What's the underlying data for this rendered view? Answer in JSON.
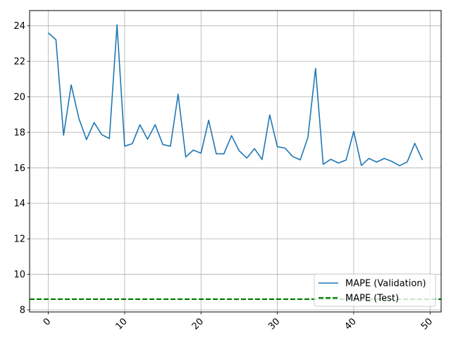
{
  "chart_data": {
    "type": "line",
    "title": "",
    "xlabel": "",
    "ylabel": "",
    "xlim": [
      -2.45,
      51.45
    ],
    "ylim": [
      7.88,
      24.86
    ],
    "x_ticks": [
      0,
      10,
      20,
      30,
      40,
      50
    ],
    "y_ticks": [
      8,
      10,
      12,
      14,
      16,
      18,
      20,
      22,
      24
    ],
    "grid": true,
    "legend_position": "lower-right",
    "series": [
      {
        "name": "MAPE (Validation)",
        "color": "#1f77b4",
        "style": "solid",
        "x": [
          0,
          1,
          2,
          3,
          4,
          5,
          6,
          7,
          8,
          9,
          10,
          11,
          12,
          13,
          14,
          15,
          16,
          17,
          18,
          19,
          20,
          21,
          22,
          23,
          24,
          25,
          26,
          27,
          28,
          29,
          30,
          31,
          32,
          33,
          34,
          35,
          36,
          37,
          38,
          39,
          40,
          41,
          42,
          43,
          44,
          45,
          46,
          47,
          48,
          49
        ],
        "values": [
          23.6,
          23.22,
          17.84,
          20.67,
          18.79,
          17.59,
          18.55,
          17.87,
          17.65,
          24.06,
          17.22,
          17.36,
          18.43,
          17.61,
          18.43,
          17.31,
          17.22,
          20.15,
          16.61,
          17.0,
          16.82,
          18.68,
          16.79,
          16.79,
          17.81,
          16.96,
          16.55,
          17.08,
          16.47,
          18.98,
          17.19,
          17.11,
          16.64,
          16.45,
          17.71,
          21.6,
          16.2,
          16.48,
          16.27,
          16.44,
          18.06,
          16.13,
          16.53,
          16.32,
          16.53,
          16.36,
          16.12,
          16.33,
          17.38,
          16.44
        ]
      },
      {
        "name": "MAPE (Test)",
        "color": "#008000",
        "style": "dashed",
        "constant": 8.6
      }
    ]
  }
}
